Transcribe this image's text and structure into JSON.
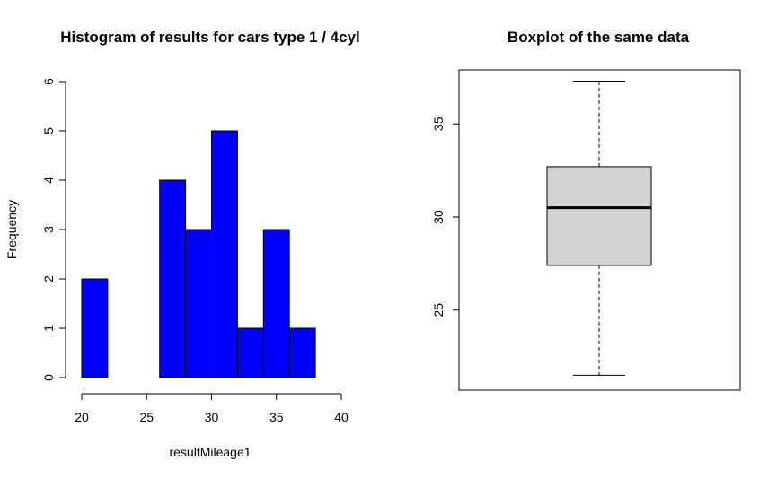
{
  "chart_data": [
    {
      "type": "bar",
      "subtype": "histogram",
      "title": "Histogram of results for cars type 1 / 4cyl",
      "xlabel": "resultMileage1",
      "ylabel": "Frequency",
      "bins": [
        {
          "x0": 20,
          "x1": 22,
          "count": 2
        },
        {
          "x0": 22,
          "x1": 24,
          "count": 0
        },
        {
          "x0": 24,
          "x1": 26,
          "count": 0
        },
        {
          "x0": 26,
          "x1": 28,
          "count": 4
        },
        {
          "x0": 28,
          "x1": 30,
          "count": 3
        },
        {
          "x0": 30,
          "x1": 32,
          "count": 5
        },
        {
          "x0": 32,
          "x1": 34,
          "count": 1
        },
        {
          "x0": 34,
          "x1": 36,
          "count": 3
        },
        {
          "x0": 36,
          "x1": 38,
          "count": 1
        }
      ],
      "xticks": [
        "20",
        "25",
        "30",
        "35",
        "40"
      ],
      "yticks": [
        "0",
        "1",
        "2",
        "3",
        "4",
        "5",
        "6"
      ],
      "xlim": [
        20,
        40
      ],
      "ylim": [
        0,
        6
      ],
      "bar_color": "#0000ff",
      "grid": false
    },
    {
      "type": "boxplot",
      "title": "Boxplot of the same data",
      "whisker_low": 21.5,
      "q1": 27.4,
      "median": 30.5,
      "q3": 32.7,
      "whisker_high": 37.3,
      "yticks": [
        "25",
        "30",
        "35"
      ],
      "ylim": [
        20.7,
        37.9
      ],
      "box_color": "#d3d3d3",
      "grid": false
    }
  ]
}
